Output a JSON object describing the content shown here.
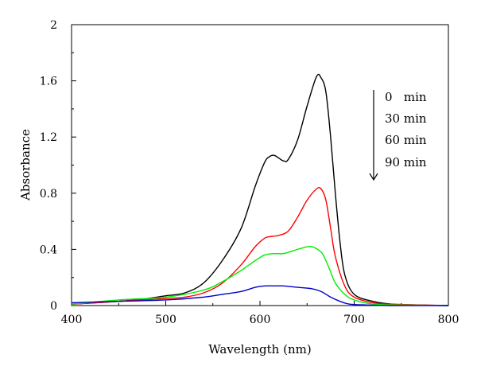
{
  "chart_data": {
    "type": "line",
    "title": "",
    "xlabel": "Wavelength (nm)",
    "ylabel": "Absorbance",
    "xlim": [
      400,
      800
    ],
    "ylim": [
      0,
      2
    ],
    "xticks": [
      "400",
      "500",
      "600",
      "700",
      "800"
    ],
    "yticks": [
      "0",
      "0.4",
      "0.8",
      "1.2",
      "1.6",
      "2"
    ],
    "grid": false,
    "legend_placement": "top-right",
    "legend_arrow": "down",
    "series": [
      {
        "name": "0   min",
        "color": "#000000",
        "x": [
          400,
          450,
          480,
          500,
          520,
          540,
          560,
          580,
          595,
          605,
          610,
          615,
          620,
          625,
          630,
          640,
          650,
          660,
          665,
          670,
          675,
          680,
          685,
          690,
          700,
          720,
          740,
          760,
          800
        ],
        "y": [
          0.01,
          0.03,
          0.05,
          0.07,
          0.09,
          0.16,
          0.32,
          0.55,
          0.85,
          1.02,
          1.06,
          1.07,
          1.05,
          1.03,
          1.04,
          1.18,
          1.42,
          1.63,
          1.62,
          1.52,
          1.2,
          0.8,
          0.45,
          0.22,
          0.08,
          0.03,
          0.01,
          0.005,
          0.0
        ]
      },
      {
        "name": "30 min",
        "color": "#ff0000",
        "x": [
          400,
          450,
          500,
          520,
          540,
          560,
          580,
          595,
          605,
          610,
          620,
          630,
          640,
          650,
          660,
          665,
          670,
          675,
          680,
          690,
          700,
          720,
          740,
          800
        ],
        "y": [
          0.01,
          0.03,
          0.05,
          0.06,
          0.09,
          0.16,
          0.29,
          0.42,
          0.48,
          0.49,
          0.5,
          0.53,
          0.63,
          0.75,
          0.83,
          0.83,
          0.75,
          0.55,
          0.35,
          0.14,
          0.06,
          0.02,
          0.01,
          0.0
        ]
      },
      {
        "name": "60 min",
        "color": "#00ee00",
        "x": [
          400,
          450,
          500,
          540,
          560,
          580,
          595,
          605,
          615,
          625,
          635,
          645,
          655,
          665,
          670,
          675,
          680,
          690,
          700,
          720,
          740,
          800
        ],
        "y": [
          0.01,
          0.04,
          0.06,
          0.11,
          0.17,
          0.25,
          0.32,
          0.36,
          0.37,
          0.37,
          0.39,
          0.41,
          0.42,
          0.38,
          0.32,
          0.24,
          0.16,
          0.08,
          0.04,
          0.01,
          0.005,
          0.0
        ]
      },
      {
        "name": "90 min",
        "color": "#0000cc",
        "x": [
          400,
          450,
          500,
          540,
          560,
          580,
          595,
          605,
          615,
          625,
          640,
          655,
          665,
          675,
          685,
          695,
          710,
          740,
          800
        ],
        "y": [
          0.02,
          0.03,
          0.04,
          0.06,
          0.08,
          0.1,
          0.13,
          0.14,
          0.14,
          0.14,
          0.13,
          0.12,
          0.1,
          0.06,
          0.03,
          0.01,
          0.005,
          0.0,
          0.0
        ]
      }
    ]
  }
}
